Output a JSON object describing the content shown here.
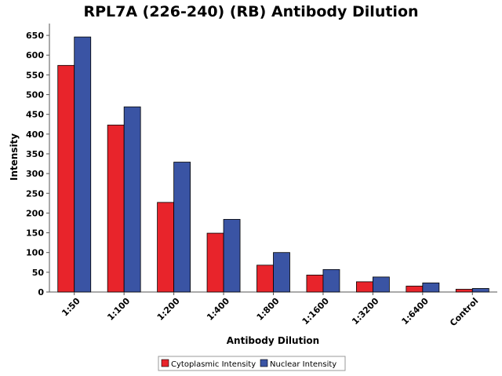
{
  "chart_data": {
    "type": "bar",
    "title": "RPL7A (226-240) (RB) Antibody Dilution",
    "xlabel": "Antibody Dilution",
    "ylabel": "Intensity",
    "categories": [
      "1:50",
      "1:100",
      "1:200",
      "1:400",
      "1:800",
      "1:1600",
      "1:3200",
      "1:6400",
      "Control"
    ],
    "series": [
      {
        "name": "Cytoplasmic Intensity",
        "color": "#e8242b",
        "values": [
          574,
          423,
          227,
          149,
          68,
          43,
          26,
          15,
          7
        ]
      },
      {
        "name": "Nuclear Intensity",
        "color": "#3a54a4",
        "values": [
          646,
          469,
          329,
          184,
          100,
          57,
          38,
          23,
          9
        ]
      }
    ],
    "ylim": [
      0,
      680
    ],
    "yticks": [
      0,
      50,
      100,
      150,
      200,
      250,
      300,
      350,
      400,
      450,
      500,
      550,
      600,
      650
    ],
    "grid": false,
    "legend_position": "bottom-center"
  }
}
